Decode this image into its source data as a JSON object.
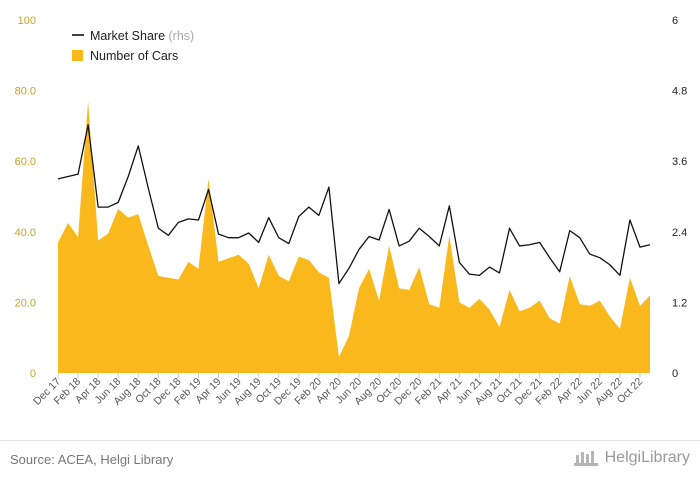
{
  "chart_data": {
    "type": "bar+line",
    "x": [
      "Dec 17",
      "Jan 18",
      "Feb 18",
      "Mar 18",
      "Apr 18",
      "May 18",
      "Jun 18",
      "Jul 18",
      "Aug 18",
      "Sep 18",
      "Oct 18",
      "Nov 18",
      "Dec 18",
      "Jan 19",
      "Feb 19",
      "Mar 19",
      "Apr 19",
      "May 19",
      "Jun 19",
      "Jul 19",
      "Aug 19",
      "Sep 19",
      "Oct 19",
      "Nov 19",
      "Dec 19",
      "Jan 20",
      "Feb 20",
      "Mar 20",
      "Apr 20",
      "May 20",
      "Jun 20",
      "Jul 20",
      "Aug 20",
      "Sep 20",
      "Oct 20",
      "Nov 20",
      "Dec 20",
      "Jan 21",
      "Feb 21",
      "Mar 21",
      "Apr 21",
      "May 21",
      "Jun 21",
      "Jul 21",
      "Aug 21",
      "Sep 21",
      "Oct 21",
      "Nov 21",
      "Dec 21",
      "Jan 22",
      "Feb 22",
      "Mar 22",
      "Apr 22",
      "May 22",
      "Jun 22",
      "Jul 22",
      "Aug 22",
      "Sep 22",
      "Oct 22",
      "Nov 22"
    ],
    "x_tick_labels": [
      "Dec 17",
      "Feb 18",
      "Apr 18",
      "Jun 18",
      "Aug 18",
      "Oct 18",
      "Dec 18",
      "Feb 19",
      "Apr 19",
      "Jun 19",
      "Aug 19",
      "Oct 19",
      "Dec 19",
      "Feb 20",
      "Apr 20",
      "Jun 20",
      "Aug 20",
      "Oct 20",
      "Dec 20",
      "Feb 21",
      "Apr 21",
      "Jun 21",
      "Aug 21",
      "Oct 21",
      "Dec 21",
      "Feb 22",
      "Apr 22",
      "Jun 22",
      "Aug 22",
      "Oct 22"
    ],
    "series": [
      {
        "name": "Number of Cars",
        "type": "area",
        "axis": "left",
        "color": "#f9b91c",
        "values": [
          37.0,
          42.5,
          38.5,
          77.0,
          37.5,
          39.5,
          46.5,
          44.0,
          45.0,
          36.0,
          27.5,
          27.0,
          26.5,
          31.5,
          29.5,
          55.0,
          31.5,
          32.5,
          33.5,
          31.0,
          24.0,
          33.5,
          27.5,
          26.0,
          33.0,
          32.0,
          28.5,
          27.0,
          4.5,
          10.5,
          24.0,
          29.5,
          20.5,
          36.0,
          24.0,
          23.5,
          30.0,
          19.5,
          18.5,
          39.0,
          20.0,
          18.5,
          21.0,
          18.0,
          13.0,
          23.5,
          17.5,
          18.5,
          20.5,
          15.5,
          14.0,
          27.5,
          19.5,
          19.0,
          20.5,
          16.0,
          12.5,
          27.0,
          19.0,
          22.0
        ]
      },
      {
        "name": "Market Share",
        "type": "line",
        "axis": "right",
        "color": "#111111",
        "values": [
          3.3,
          3.34,
          3.38,
          4.22,
          2.82,
          2.82,
          2.9,
          3.34,
          3.86,
          3.14,
          2.46,
          2.34,
          2.56,
          2.62,
          2.6,
          3.12,
          2.36,
          2.3,
          2.3,
          2.38,
          2.22,
          2.64,
          2.3,
          2.2,
          2.66,
          2.82,
          2.68,
          3.16,
          1.52,
          1.78,
          2.1,
          2.32,
          2.26,
          2.78,
          2.16,
          2.24,
          2.46,
          2.32,
          2.16,
          2.84,
          1.88,
          1.68,
          1.66,
          1.8,
          1.7,
          2.46,
          2.16,
          2.18,
          2.22,
          1.96,
          1.72,
          2.42,
          2.3,
          2.02,
          1.96,
          1.84,
          1.66,
          2.6,
          2.14,
          2.18
        ]
      }
    ],
    "y_left": {
      "min": 0,
      "max": 100,
      "ticks": [
        "0",
        "20.0",
        "40.0",
        "60.0",
        "80.0",
        "100"
      ]
    },
    "y_right": {
      "min": 0,
      "max": 6,
      "ticks": [
        "0",
        "1.2",
        "2.4",
        "3.6",
        "4.8",
        "6"
      ]
    },
    "legend": {
      "placement": "top-left",
      "items": [
        {
          "label": "Market Share",
          "suffix": "(rhs)",
          "marker": "line",
          "color": "#111111"
        },
        {
          "label": "Number of Cars",
          "suffix": "",
          "marker": "square",
          "color": "#f9b91c"
        }
      ]
    },
    "grid": false
  },
  "footer": {
    "source": "Source: ACEA, Helgi Library",
    "brand": "HelgiLibrary",
    "brand_icon": "library-building-icon"
  }
}
